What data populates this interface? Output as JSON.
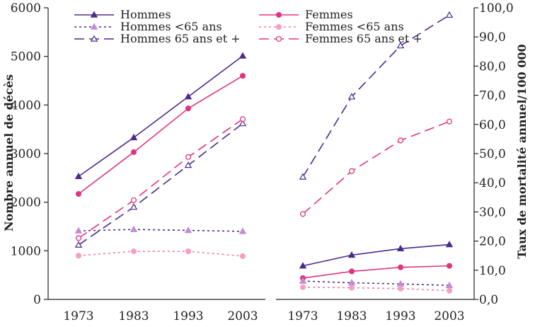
{
  "chart_data": [
    {
      "type": "line",
      "panel": "left",
      "ylabel": "Nombre annuel de décès",
      "ylim": [
        0,
        6000
      ],
      "yticks": [
        0,
        1000,
        2000,
        3000,
        4000,
        5000,
        6000
      ],
      "categories": [
        "1973",
        "1983",
        "1993",
        "2003"
      ],
      "x": [
        1973,
        1983,
        1993,
        2003
      ],
      "series": [
        {
          "key": "hommes",
          "name": "Hommes",
          "values": [
            2530,
            3330,
            4170,
            5010
          ]
        },
        {
          "key": "femmes",
          "name": "Femmes",
          "values": [
            2170,
            3030,
            3930,
            4600
          ]
        },
        {
          "key": "hommes_lt65",
          "name": "Hommes <65 ans",
          "values": [
            1410,
            1440,
            1420,
            1400
          ]
        },
        {
          "key": "femmes_lt65",
          "name": "Femmes <65 ans",
          "values": [
            900,
            990,
            990,
            890
          ]
        },
        {
          "key": "hommes_65p",
          "name": "Hommes 65 ans et +",
          "values": [
            1120,
            1900,
            2760,
            3620
          ]
        },
        {
          "key": "femmes_65p",
          "name": "Femmes 65 ans et +",
          "values": [
            1260,
            2040,
            2930,
            3710
          ]
        }
      ]
    },
    {
      "type": "line",
      "panel": "right",
      "ylabel": "Taux de mortalité annuel/100 000",
      "ylim": [
        0,
        100
      ],
      "yticks": [
        "0,0",
        "10,0",
        "20,0",
        "30,0",
        "40,0",
        "50,0",
        "60,0",
        "70,0",
        "80,0",
        "90,0",
        "100,0"
      ],
      "categories": [
        "1973",
        "1983",
        "1993",
        "2003"
      ],
      "x": [
        1973,
        1983,
        1993,
        2003
      ],
      "series": [
        {
          "key": "hommes",
          "name": "Hommes",
          "values": [
            11.5,
            15.2,
            17.4,
            18.8
          ]
        },
        {
          "key": "femmes",
          "name": "Femmes",
          "values": [
            7.3,
            9.6,
            11.0,
            11.5
          ]
        },
        {
          "key": "hommes_lt65",
          "name": "Hommes <65 ans",
          "values": [
            6.3,
            5.7,
            5.3,
            4.8
          ]
        },
        {
          "key": "femmes_lt65",
          "name": "Femmes <65 ans",
          "values": [
            4.2,
            4.0,
            3.7,
            3.0
          ]
        },
        {
          "key": "hommes_65p",
          "name": "Hommes 65 ans et +",
          "values": [
            42.0,
            69.5,
            87.0,
            97.5
          ]
        },
        {
          "key": "femmes_65p",
          "name": "Femmes 65 ans et +",
          "values": [
            29.3,
            44.0,
            54.5,
            61.0
          ]
        }
      ]
    }
  ],
  "legend": {
    "hommes": "Hommes",
    "hommes_lt65": "Hommes <65 ans",
    "hommes_65p": "Hommes 65 ans et +",
    "femmes": "Femmes",
    "femmes_lt65": "Femmes <65 ans",
    "femmes_65p": "Femmes 65 ans et +"
  },
  "styles": {
    "hommes": {
      "color": "#4b2a8c",
      "dash": "",
      "marker": "triangle"
    },
    "femmes": {
      "color": "#e0347e",
      "dash": "",
      "marker": "circle"
    },
    "hommes_lt65": {
      "color": "#4b2a8c",
      "dash": "3 4",
      "marker": "triangle",
      "marker_color": "#c48ad6"
    },
    "femmes_lt65": {
      "color": "#f07aa8",
      "dash": "3 4",
      "marker": "circle",
      "marker_color": "#f5a0c3"
    },
    "hommes_65p": {
      "color": "#4b2a8c",
      "dash": "14 7",
      "marker": "triangle-open"
    },
    "femmes_65p": {
      "color": "#e0347e",
      "dash": "14 7",
      "marker": "circle-open"
    }
  }
}
